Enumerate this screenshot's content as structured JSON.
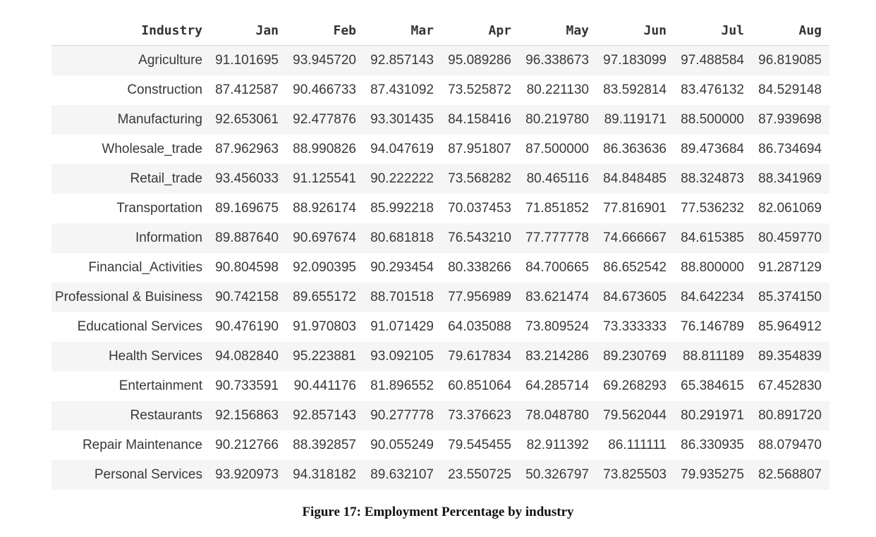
{
  "table": {
    "columns": [
      "Industry",
      "Jan",
      "Feb",
      "Mar",
      "Apr",
      "May",
      "Jun",
      "Jul",
      "Aug"
    ],
    "rows": [
      [
        "Agriculture",
        "91.101695",
        "93.945720",
        "92.857143",
        "95.089286",
        "96.338673",
        "97.183099",
        "97.488584",
        "96.819085"
      ],
      [
        "Construction",
        "87.412587",
        "90.466733",
        "87.431092",
        "73.525872",
        "80.221130",
        "83.592814",
        "83.476132",
        "84.529148"
      ],
      [
        "Manufacturing",
        "92.653061",
        "92.477876",
        "93.301435",
        "84.158416",
        "80.219780",
        "89.119171",
        "88.500000",
        "87.939698"
      ],
      [
        "Wholesale_trade",
        "87.962963",
        "88.990826",
        "94.047619",
        "87.951807",
        "87.500000",
        "86.363636",
        "89.473684",
        "86.734694"
      ],
      [
        "Retail_trade",
        "93.456033",
        "91.125541",
        "90.222222",
        "73.568282",
        "80.465116",
        "84.848485",
        "88.324873",
        "88.341969"
      ],
      [
        "Transportation",
        "89.169675",
        "88.926174",
        "85.992218",
        "70.037453",
        "71.851852",
        "77.816901",
        "77.536232",
        "82.061069"
      ],
      [
        "Information",
        "89.887640",
        "90.697674",
        "80.681818",
        "76.543210",
        "77.777778",
        "74.666667",
        "84.615385",
        "80.459770"
      ],
      [
        "Financial_Activities",
        "90.804598",
        "92.090395",
        "90.293454",
        "80.338266",
        "84.700665",
        "86.652542",
        "88.800000",
        "91.287129"
      ],
      [
        "Professional & Buisiness",
        "90.742158",
        "89.655172",
        "88.701518",
        "77.956989",
        "83.621474",
        "84.673605",
        "84.642234",
        "85.374150"
      ],
      [
        "Educational Services",
        "90.476190",
        "91.970803",
        "91.071429",
        "64.035088",
        "73.809524",
        "73.333333",
        "76.146789",
        "85.964912"
      ],
      [
        "Health Services",
        "94.082840",
        "95.223881",
        "93.092105",
        "79.617834",
        "83.214286",
        "89.230769",
        "88.811189",
        "89.354839"
      ],
      [
        "Entertainment",
        "90.733591",
        "90.441176",
        "81.896552",
        "60.851064",
        "64.285714",
        "69.268293",
        "65.384615",
        "67.452830"
      ],
      [
        "Restaurants",
        "92.156863",
        "92.857143",
        "90.277778",
        "73.376623",
        "78.048780",
        "79.562044",
        "80.291971",
        "80.891720"
      ],
      [
        "Repair Maintenance",
        "90.212766",
        "88.392857",
        "90.055249",
        "79.545455",
        "82.911392",
        "86.111111",
        "86.330935",
        "88.079470"
      ],
      [
        "Personal Services",
        "93.920973",
        "94.318182",
        "89.632107",
        "23.550725",
        "50.326797",
        "73.825503",
        "79.935275",
        "82.568807"
      ]
    ]
  },
  "caption": "Figure 17: Employment Percentage by industry"
}
